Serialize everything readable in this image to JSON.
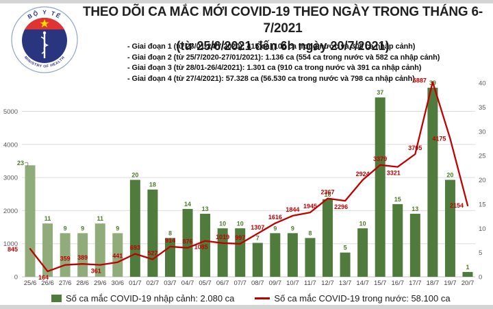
{
  "header": {
    "title": "THEO DÕI CA MẮC MỚI COVID-19 THEO NGÀY TRONG THÁNG 6-7/2021",
    "subtitle": "(từ 25/6/2021 đến 6h ngày 20/7/2021)",
    "bullets": [
      "- Giai đoạn 1 (từ 23/01-24/7/2020): 415 ca (106 ca trong nước và 309 ca nhập cảnh)",
      "- Giai đoạn 2 (từ 25/7/2020-27/01/2021): 1.136 ca (554 ca trong nước và 582 ca nhập cảnh)",
      "- Giai đoạn 3 (từ 28/01-26/4/2021): 1.301 ca (910 ca trong nước và 391 ca nhập cảnh)",
      "- Giai đoạn 4 (từ 27/4/2021): 57.328 ca (56.530 ca trong nước và 798 ca nhập cảnh)"
    ],
    "logo": {
      "top_text": "BỘ Y TẾ",
      "bottom_text": "MINISTRY OF HEALTH"
    }
  },
  "legend": {
    "bars_label": "Số ca mắc COVID-19 nhập cảnh: 2.080 ca",
    "line_label": "Số ca mắc COVID-19 trong nước: 58.100 ca"
  },
  "colors": {
    "bar_june": "#90ac7b",
    "bar_july": "#4f7b3c",
    "bar_label": "#4e7a2b",
    "line": "#c00000",
    "line_label": "#c00000",
    "axis_text": "#595959",
    "x_label": "#404040",
    "gridline": "#dcdcdc",
    "baseline": "#c0c0c0",
    "logo_navy": "#2a3580",
    "logo_red": "#e23333",
    "logo_star": "#ffde00"
  },
  "chart_data": {
    "type": "combo (bar + line)",
    "categories": [
      "25/6",
      "26/6",
      "27/6",
      "28/6",
      "29/6",
      "30/6",
      "01/7",
      "02/7",
      "03/7",
      "04/7",
      "05/7",
      "06/7",
      "07/7",
      "08/7",
      "09/7",
      "10/7",
      "11/7",
      "12/7",
      "13/7",
      "14/7",
      "15/7",
      "16/7",
      "17/7",
      "18/7",
      "19/7",
      "20/7"
    ],
    "series": [
      {
        "name": "Số ca mắc COVID-19 nhập cảnh",
        "type": "bar",
        "axis": "right",
        "values": [
          23,
          11,
          9,
          9,
          11,
          9,
          20,
          18,
          8,
          14,
          13,
          10,
          10,
          7,
          9,
          9,
          8,
          16,
          5,
          10,
          37,
          15,
          13,
          39,
          20,
          1
        ]
      },
      {
        "name": "Số ca mắc COVID-19 trong nước",
        "type": "line",
        "axis": "left",
        "values": [
          845,
          164,
          359,
          389,
          361,
          441,
          693,
          527,
          914,
          876,
          1085,
          1019,
          997,
          1307,
          1616,
          1844,
          1945,
          2367,
          2296,
          2924,
          3379,
          3321,
          3705,
          5887,
          4175,
          2154
        ],
        "label_positions": [
          "left",
          "below",
          "above",
          "above",
          "below",
          "above",
          "above",
          "above",
          "above",
          "above",
          "below",
          "above",
          "above",
          "above",
          "above",
          "above",
          "above",
          "above",
          "below",
          "above",
          "above",
          "below",
          "above",
          "left",
          "left",
          "left"
        ]
      }
    ],
    "left_axis": {
      "ticks": [
        0,
        1000,
        2000,
        3000,
        4000,
        5000
      ],
      "max": 6000
    },
    "right_axis": {
      "ticks": [
        0,
        5,
        10,
        15,
        20,
        25,
        30,
        35,
        40
      ],
      "max": 40
    },
    "grid": true,
    "legend_position": "bottom"
  }
}
